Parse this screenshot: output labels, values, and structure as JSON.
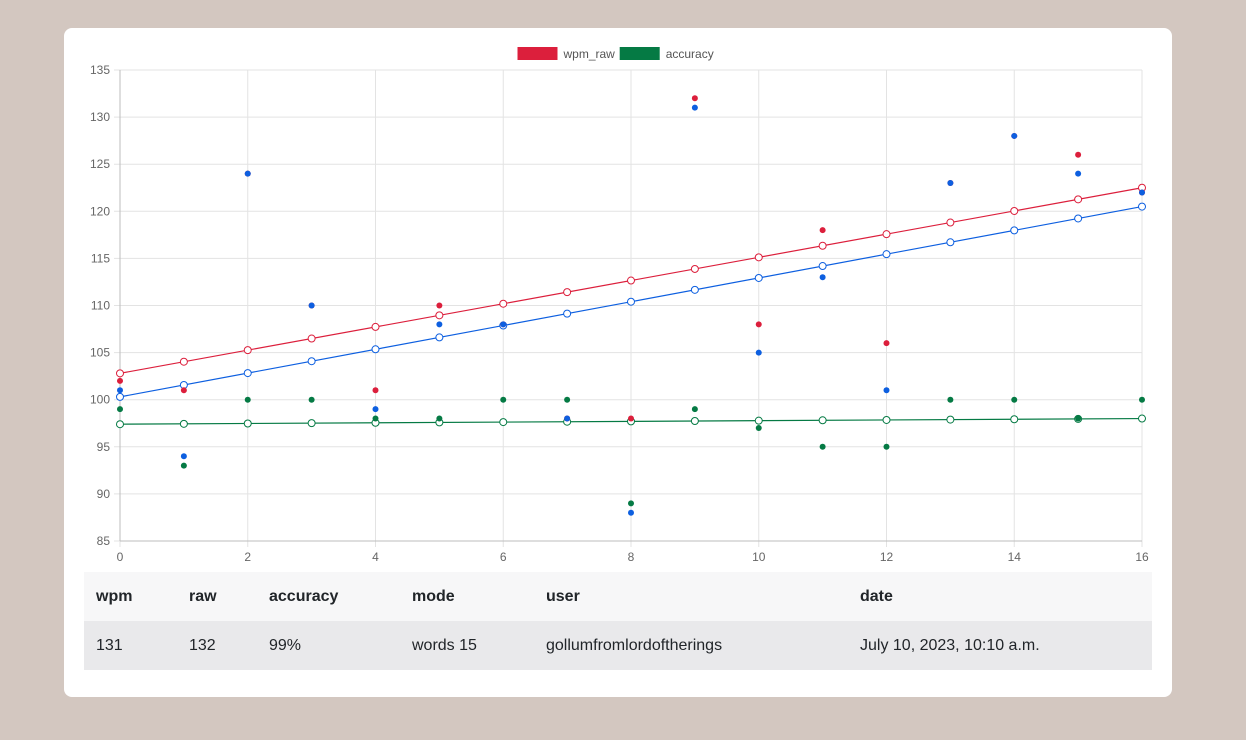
{
  "chart_data": {
    "type": "scatter",
    "title": "",
    "xlabel": "",
    "ylabel": "",
    "xlim": [
      0,
      16
    ],
    "ylim": [
      85,
      135
    ],
    "x_ticks": [
      0,
      2,
      4,
      6,
      8,
      10,
      12,
      14,
      16
    ],
    "y_ticks": [
      85,
      90,
      95,
      100,
      105,
      110,
      115,
      120,
      125,
      130,
      135
    ],
    "grid": true,
    "legend_position": "top-center",
    "legend": [
      {
        "label": "wpm_raw",
        "color": "#dc1f3c"
      },
      {
        "label": "accuracy",
        "color": "#057a44"
      }
    ],
    "series": [
      {
        "color": "#dc1f3c",
        "points": [
          [
            0,
            102
          ],
          [
            1,
            101
          ],
          [
            2,
            124
          ],
          [
            3,
            110
          ],
          [
            4,
            101
          ],
          [
            5,
            110
          ],
          [
            6,
            108
          ],
          [
            7,
            98
          ],
          [
            8,
            98
          ],
          [
            9,
            132
          ],
          [
            10,
            108
          ],
          [
            11,
            118
          ],
          [
            12,
            106
          ],
          [
            13,
            123
          ],
          [
            14,
            128
          ],
          [
            15,
            126
          ],
          [
            16,
            122
          ]
        ],
        "trend": [
          102.8,
          122.5
        ]
      },
      {
        "color": "#0d5fe0",
        "points": [
          [
            0,
            101
          ],
          [
            1,
            94
          ],
          [
            2,
            124
          ],
          [
            3,
            110
          ],
          [
            4,
            99
          ],
          [
            5,
            108
          ],
          [
            6,
            108
          ],
          [
            7,
            98
          ],
          [
            8,
            88
          ],
          [
            9,
            131
          ],
          [
            10,
            105
          ],
          [
            11,
            113
          ],
          [
            12,
            101
          ],
          [
            13,
            123
          ],
          [
            14,
            128
          ],
          [
            15,
            124
          ],
          [
            16,
            122
          ]
        ],
        "trend": [
          100.3,
          120.5
        ]
      },
      {
        "color": "#057a44",
        "points": [
          [
            0,
            99
          ],
          [
            1,
            93
          ],
          [
            2,
            100
          ],
          [
            3,
            100
          ],
          [
            4,
            98
          ],
          [
            5,
            98
          ],
          [
            6,
            100
          ],
          [
            7,
            100
          ],
          [
            8,
            89
          ],
          [
            9,
            99
          ],
          [
            10,
            97
          ],
          [
            11,
            95
          ],
          [
            12,
            95
          ],
          [
            13,
            100
          ],
          [
            14,
            100
          ],
          [
            15,
            98
          ],
          [
            16,
            100
          ]
        ],
        "trend": [
          97.4,
          98.0
        ]
      }
    ]
  },
  "table": {
    "headers": {
      "wpm": "wpm",
      "raw": "raw",
      "accuracy": "accuracy",
      "mode": "mode",
      "user": "user",
      "date": "date"
    },
    "row": {
      "wpm": "131",
      "raw": "132",
      "accuracy": "99%",
      "mode": "words 15",
      "user": "gollumfromlordoftherings",
      "date": "July 10, 2023, 10:10 a.m."
    }
  }
}
